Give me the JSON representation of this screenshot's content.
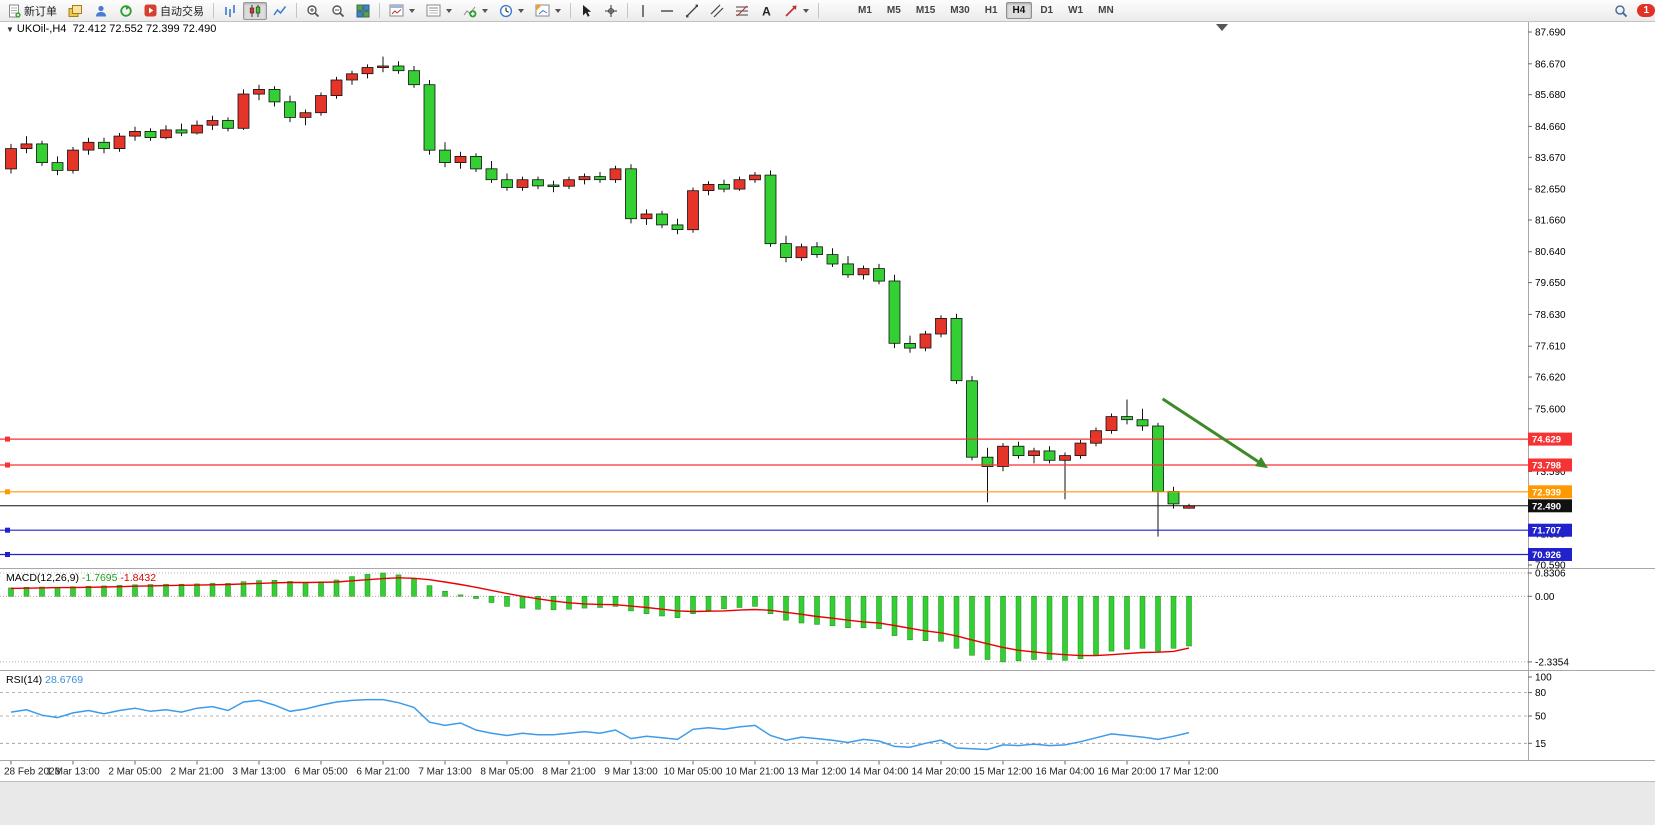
{
  "toolbar": {
    "new_order": "新订单",
    "autotrading": "自动交易",
    "timeframes": [
      "M1",
      "M5",
      "M15",
      "M30",
      "H1",
      "H4",
      "D1",
      "W1",
      "MN"
    ],
    "active_timeframe": "H4",
    "notification_badge": "1"
  },
  "chart": {
    "symbol_title": "UKOil-,H4",
    "ohlc_text": "72.412 72.552 72.399 72.490",
    "price_axis_labels": [
      "87.690",
      "86.670",
      "85.680",
      "84.660",
      "83.670",
      "82.650",
      "81.660",
      "80.640",
      "79.650",
      "78.630",
      "77.610",
      "76.620",
      "75.600",
      "74.610",
      "73.590",
      "72.570",
      "71.580",
      "70.590"
    ],
    "time_axis_labels": [
      "28 Feb 2023",
      "1 Mar 13:00",
      "2 Mar 05:00",
      "2 Mar 21:00",
      "3 Mar 13:00",
      "6 Mar 05:00",
      "6 Mar 21:00",
      "7 Mar 13:00",
      "8 Mar 05:00",
      "8 Mar 21:00",
      "9 Mar 13:00",
      "10 Mar 05:00",
      "10 Mar 21:00",
      "13 Mar 12:00",
      "14 Mar 04:00",
      "14 Mar 20:00",
      "15 Mar 12:00",
      "16 Mar 04:00",
      "16 Mar 20:00",
      "17 Mar 12:00"
    ],
    "levels": [
      {
        "price": 74.629,
        "label": "74.629",
        "color": "#f63232",
        "type": "resistance"
      },
      {
        "price": 73.798,
        "label": "73.798",
        "color": "#f63232",
        "type": "resistance"
      },
      {
        "price": 72.939,
        "label": "72.939",
        "color": "#ff9900",
        "type": "pivot"
      },
      {
        "price": 71.707,
        "label": "71.707",
        "color": "#2222cc",
        "type": "support"
      },
      {
        "price": 70.926,
        "label": "70.926",
        "color": "#2222cc",
        "type": "support"
      }
    ],
    "current_price": {
      "price": 72.49,
      "label": "72.490"
    },
    "macd_label": "MACD(12,26,9)",
    "macd_value": "-1.7695",
    "macd_signal_value": "-1.8432",
    "macd_axis_labels": [
      "0.8306",
      "0.00",
      "-2.3354"
    ],
    "rsi_label": "RSI(14)",
    "rsi_value": "28.6769",
    "rsi_axis_labels": [
      "100",
      "80",
      "50",
      "15"
    ]
  },
  "chart_data": {
    "type": "candlestick",
    "symbol": "UKOil-",
    "period": "H4",
    "price_top": 87.69,
    "price_bottom": 70.59,
    "candles_ohlc": [
      [
        83.3,
        84.1,
        83.15,
        83.95
      ],
      [
        83.95,
        84.35,
        83.8,
        84.1
      ],
      [
        84.1,
        84.2,
        83.4,
        83.5
      ],
      [
        83.5,
        83.7,
        83.1,
        83.25
      ],
      [
        83.25,
        84.0,
        83.15,
        83.9
      ],
      [
        83.9,
        84.3,
        83.75,
        84.15
      ],
      [
        84.15,
        84.3,
        83.8,
        83.95
      ],
      [
        83.95,
        84.45,
        83.85,
        84.35
      ],
      [
        84.35,
        84.65,
        84.2,
        84.5
      ],
      [
        84.5,
        84.6,
        84.2,
        84.3
      ],
      [
        84.3,
        84.7,
        84.25,
        84.55
      ],
      [
        84.55,
        84.75,
        84.35,
        84.45
      ],
      [
        84.45,
        84.85,
        84.4,
        84.7
      ],
      [
        84.7,
        85.0,
        84.55,
        84.85
      ],
      [
        84.85,
        84.95,
        84.5,
        84.6
      ],
      [
        84.6,
        85.85,
        84.55,
        85.7
      ],
      [
        85.7,
        86.0,
        85.5,
        85.85
      ],
      [
        85.85,
        85.95,
        85.3,
        85.45
      ],
      [
        85.45,
        85.65,
        84.8,
        84.95
      ],
      [
        84.95,
        85.2,
        84.7,
        85.1
      ],
      [
        85.1,
        85.75,
        85.0,
        85.65
      ],
      [
        85.65,
        86.25,
        85.55,
        86.15
      ],
      [
        86.15,
        86.45,
        86.0,
        86.35
      ],
      [
        86.35,
        86.65,
        86.2,
        86.55
      ],
      [
        86.55,
        86.9,
        86.4,
        86.6
      ],
      [
        86.6,
        86.75,
        86.35,
        86.45
      ],
      [
        86.45,
        86.6,
        85.9,
        86.0
      ],
      [
        86.0,
        86.15,
        83.75,
        83.9
      ],
      [
        83.9,
        84.15,
        83.35,
        83.5
      ],
      [
        83.5,
        83.85,
        83.3,
        83.7
      ],
      [
        83.7,
        83.8,
        83.2,
        83.3
      ],
      [
        83.3,
        83.55,
        82.85,
        82.95
      ],
      [
        82.95,
        83.15,
        82.6,
        82.7
      ],
      [
        82.7,
        83.05,
        82.6,
        82.95
      ],
      [
        82.95,
        83.05,
        82.65,
        82.75
      ],
      [
        82.78,
        82.92,
        82.55,
        82.74
      ],
      [
        82.74,
        83.05,
        82.65,
        82.95
      ],
      [
        82.95,
        83.15,
        82.8,
        83.05
      ],
      [
        83.05,
        83.2,
        82.85,
        82.95
      ],
      [
        82.95,
        83.4,
        82.85,
        83.3
      ],
      [
        83.3,
        83.45,
        81.55,
        81.7
      ],
      [
        81.7,
        82.0,
        81.5,
        81.85
      ],
      [
        81.85,
        81.95,
        81.4,
        81.5
      ],
      [
        81.5,
        81.7,
        81.2,
        81.35
      ],
      [
        81.35,
        82.7,
        81.25,
        82.6
      ],
      [
        82.6,
        82.9,
        82.45,
        82.8
      ],
      [
        82.8,
        82.95,
        82.55,
        82.65
      ],
      [
        82.65,
        83.05,
        82.6,
        82.95
      ],
      [
        82.95,
        83.2,
        82.85,
        83.1
      ],
      [
        83.1,
        83.25,
        80.8,
        80.9
      ],
      [
        80.9,
        81.15,
        80.3,
        80.45
      ],
      [
        80.45,
        80.9,
        80.35,
        80.8
      ],
      [
        80.8,
        80.95,
        80.45,
        80.55
      ],
      [
        80.55,
        80.75,
        80.15,
        80.25
      ],
      [
        80.25,
        80.5,
        79.8,
        79.9
      ],
      [
        79.9,
        80.2,
        79.75,
        80.1
      ],
      [
        80.1,
        80.25,
        79.6,
        79.7
      ],
      [
        79.7,
        79.9,
        77.55,
        77.7
      ],
      [
        77.7,
        77.95,
        77.4,
        77.55
      ],
      [
        77.55,
        78.1,
        77.45,
        78.0
      ],
      [
        78.0,
        78.6,
        77.9,
        78.5
      ],
      [
        78.5,
        78.65,
        76.4,
        76.5
      ],
      [
        76.5,
        76.65,
        73.95,
        74.05
      ],
      [
        74.05,
        74.35,
        72.6,
        73.75
      ],
      [
        73.75,
        74.5,
        73.6,
        74.4
      ],
      [
        74.4,
        74.55,
        74.0,
        74.1
      ],
      [
        74.1,
        74.35,
        73.85,
        74.25
      ],
      [
        74.25,
        74.4,
        73.85,
        73.95
      ],
      [
        73.95,
        74.2,
        72.7,
        74.1
      ],
      [
        74.1,
        74.6,
        74.0,
        74.5
      ],
      [
        74.5,
        75.0,
        74.4,
        74.9
      ],
      [
        74.9,
        75.45,
        74.8,
        75.35
      ],
      [
        75.35,
        75.9,
        75.1,
        75.25
      ],
      [
        75.25,
        75.6,
        74.9,
        75.05
      ],
      [
        75.05,
        75.15,
        71.5,
        72.95
      ],
      [
        72.95,
        73.1,
        72.4,
        72.55
      ],
      [
        72.412,
        72.552,
        72.399,
        72.49
      ]
    ],
    "indicators": {
      "macd": {
        "params": "12,26,9",
        "scale_max": 0.8306,
        "scale_min": -2.3354,
        "histogram": [
          0.3,
          0.32,
          0.33,
          0.32,
          0.34,
          0.36,
          0.37,
          0.39,
          0.41,
          0.42,
          0.43,
          0.43,
          0.44,
          0.46,
          0.46,
          0.52,
          0.56,
          0.57,
          0.53,
          0.5,
          0.52,
          0.58,
          0.7,
          0.78,
          0.83,
          0.76,
          0.62,
          0.38,
          0.18,
          0.05,
          -0.08,
          -0.22,
          -0.36,
          -0.42,
          -0.46,
          -0.48,
          -0.46,
          -0.42,
          -0.4,
          -0.36,
          -0.52,
          -0.62,
          -0.7,
          -0.76,
          -0.62,
          -0.5,
          -0.45,
          -0.4,
          -0.36,
          -0.62,
          -0.85,
          -0.95,
          -1.0,
          -1.05,
          -1.12,
          -1.12,
          -1.15,
          -1.4,
          -1.55,
          -1.58,
          -1.6,
          -1.85,
          -2.1,
          -2.25,
          -2.3354,
          -2.3,
          -2.25,
          -2.25,
          -2.28,
          -2.22,
          -2.1,
          -1.95,
          -1.88,
          -1.85,
          -1.95,
          -1.85,
          -1.7695
        ],
        "signal": [
          0.28,
          0.29,
          0.3,
          0.31,
          0.31,
          0.32,
          0.33,
          0.34,
          0.36,
          0.37,
          0.38,
          0.39,
          0.4,
          0.41,
          0.42,
          0.44,
          0.46,
          0.48,
          0.49,
          0.49,
          0.5,
          0.51,
          0.55,
          0.59,
          0.63,
          0.66,
          0.64,
          0.59,
          0.51,
          0.42,
          0.32,
          0.21,
          0.1,
          0.0,
          -0.09,
          -0.17,
          -0.23,
          -0.27,
          -0.29,
          -0.3,
          -0.35,
          -0.4,
          -0.46,
          -0.52,
          -0.54,
          -0.53,
          -0.52,
          -0.49,
          -0.47,
          -0.5,
          -0.57,
          -0.64,
          -0.72,
          -0.78,
          -0.85,
          -0.91,
          -0.95,
          -1.04,
          -1.14,
          -1.23,
          -1.3,
          -1.41,
          -1.55,
          -1.69,
          -1.82,
          -1.92,
          -1.98,
          -2.04,
          -2.08,
          -2.11,
          -2.11,
          -2.08,
          -2.04,
          -2.0,
          -1.99,
          -1.96,
          -1.8432
        ]
      },
      "rsi": {
        "params": "14",
        "levels": [
          80,
          50,
          15
        ],
        "values": [
          55,
          58,
          51,
          48,
          54,
          57,
          53,
          57,
          60,
          56,
          58,
          55,
          60,
          62,
          57,
          68,
          70,
          64,
          56,
          59,
          64,
          68,
          70,
          71,
          71,
          67,
          61,
          42,
          38,
          41,
          32,
          28,
          25,
          28,
          26,
          26,
          28,
          30,
          28,
          32,
          21,
          24,
          22,
          20,
          33,
          35,
          33,
          36,
          38,
          25,
          19,
          23,
          21,
          19,
          16,
          20,
          18,
          11,
          10,
          15,
          19,
          9,
          8,
          7,
          13,
          12,
          14,
          12,
          13,
          17,
          22,
          27,
          25,
          23,
          20,
          24,
          28.6769
        ]
      }
    },
    "annotations": [
      {
        "type": "arrow",
        "color": "#3c8a28",
        "from": {
          "index": 74.3,
          "price": 75.92
        },
        "to": {
          "index": 81.1,
          "price": 73.7
        },
        "note": "downtrend arrow"
      }
    ]
  },
  "colors": {
    "bull": "#e53528",
    "bear": "#33cf33",
    "wick": "#111111",
    "macd_histogram": "#33cf33",
    "macd_signal": "#e80000",
    "rsi_line": "#3d9be9",
    "background": "#ffffff"
  }
}
